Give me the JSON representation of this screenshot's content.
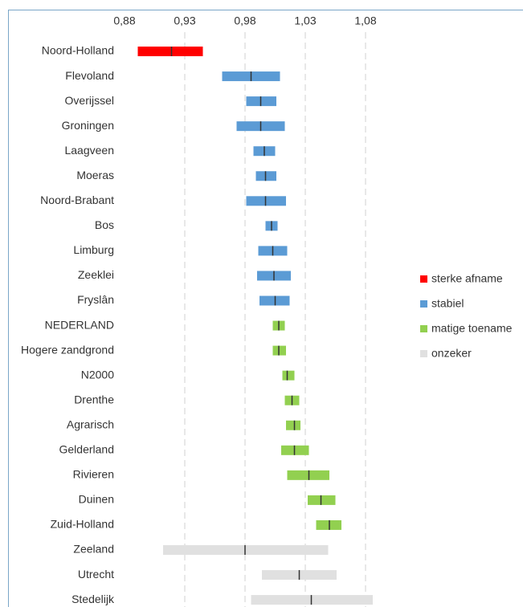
{
  "chart_data": {
    "type": "range",
    "xlim": [
      0.88,
      1.09
    ],
    "xticks": [
      {
        "value": 0.88,
        "label": "0,88"
      },
      {
        "value": 0.93,
        "label": "0,93"
      },
      {
        "value": 0.98,
        "label": "0,98"
      },
      {
        "value": 1.03,
        "label": "1,03"
      },
      {
        "value": 1.08,
        "label": "1,08"
      }
    ],
    "grid": true,
    "legend": "right",
    "estimate_color": "#333333",
    "series": [
      {
        "name": "sterke afname",
        "color": "#ff0000",
        "categories": [
          "Noord-Holland"
        ],
        "low": [
          0.891
        ],
        "high": [
          0.945
        ],
        "estimate": [
          0.919
        ]
      },
      {
        "name": "stabiel",
        "color": "#5b9bd5",
        "categories": [
          "Flevoland",
          "Overijssel",
          "Groningen",
          "Laagveen",
          "Moeras",
          "Noord-Brabant",
          "Bos",
          "Limburg",
          "Zeeklei",
          "Fryslân"
        ],
        "low": [
          0.961,
          0.981,
          0.973,
          0.987,
          0.989,
          0.981,
          0.997,
          0.991,
          0.99,
          0.992
        ],
        "high": [
          1.009,
          1.006,
          1.013,
          1.005,
          1.006,
          1.014,
          1.007,
          1.015,
          1.018,
          1.017
        ],
        "estimate": [
          0.985,
          0.993,
          0.993,
          0.996,
          0.997,
          0.997,
          1.002,
          1.003,
          1.004,
          1.005
        ]
      },
      {
        "name": "matige toename",
        "color": "#92d050",
        "categories": [
          "NEDERLAND",
          "Hogere zandgrond",
          "N2000",
          "Drenthe",
          "Agrarisch",
          "Gelderland",
          "Rivieren",
          "Duinen",
          "Zuid-Holland"
        ],
        "low": [
          1.003,
          1.003,
          1.011,
          1.013,
          1.014,
          1.01,
          1.015,
          1.032,
          1.039
        ],
        "high": [
          1.013,
          1.014,
          1.021,
          1.025,
          1.026,
          1.033,
          1.05,
          1.055,
          1.06
        ],
        "estimate": [
          1.008,
          1.008,
          1.015,
          1.019,
          1.021,
          1.021,
          1.033,
          1.043,
          1.05
        ]
      },
      {
        "name": "onzeker",
        "color": "#e0e0e0",
        "categories": [
          "Zeeland",
          "Utrecht",
          "Stedelijk"
        ],
        "low": [
          0.912,
          0.994,
          0.985
        ],
        "high": [
          1.049,
          1.056,
          1.086
        ],
        "estimate": [
          0.98,
          1.025,
          1.035
        ]
      }
    ]
  }
}
